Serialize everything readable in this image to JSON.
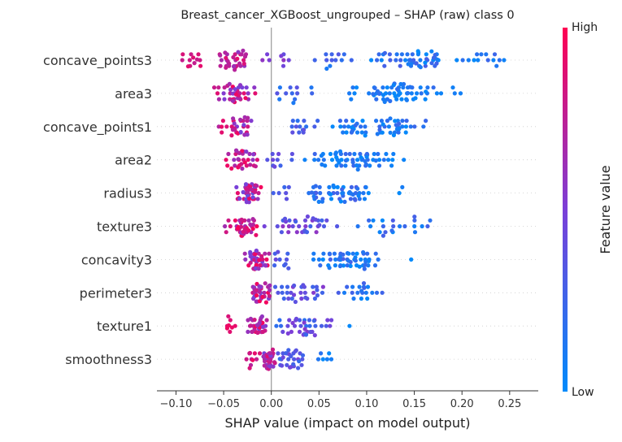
{
  "chart_data": {
    "type": "scatter",
    "subtype": "shap-beeswarm",
    "title": "Breast_cancer_XGBoost_ungrouped – SHAP (raw) class 0",
    "xlabel": "SHAP value (impact on model output)",
    "xlim": [
      -0.12,
      0.28
    ],
    "xticks": [
      -0.1,
      -0.05,
      0.0,
      0.05,
      0.1,
      0.15,
      0.2,
      0.25
    ],
    "xtick_labels": [
      "−0.10",
      "−0.05",
      "0.00",
      "0.05",
      "0.10",
      "0.15",
      "0.20",
      "0.25"
    ],
    "grid": false,
    "colorbar": {
      "label": "Feature value",
      "high_label": "High",
      "low_label": "Low",
      "high_color": "#ff0052",
      "mid_color": "#7b3fd8",
      "low_color": "#008bfb"
    },
    "features": [
      {
        "name": "concave_points3",
        "clusters": [
          {
            "x": [
              -0.1,
              -0.07
            ],
            "n": 12,
            "c": [
              0.92,
              0.75
            ]
          },
          {
            "x": [
              -0.06,
              -0.02
            ],
            "n": 34,
            "c": [
              0.9,
              0.55
            ]
          },
          {
            "x": [
              -0.015,
              0.03
            ],
            "n": 8,
            "c": [
              0.6,
              0.4
            ]
          },
          {
            "x": [
              0.03,
              0.1
            ],
            "n": 12,
            "c": [
              0.35,
              0.1
            ]
          },
          {
            "x": [
              0.1,
              0.19
            ],
            "n": 48,
            "c": [
              0.3,
              0.0
            ]
          },
          {
            "x": [
              0.19,
              0.265
            ],
            "n": 14,
            "c": [
              0.25,
              0.0
            ]
          }
        ]
      },
      {
        "name": "area3",
        "clusters": [
          {
            "x": [
              -0.065,
              -0.015
            ],
            "n": 38,
            "c": [
              0.95,
              0.45
            ]
          },
          {
            "x": [
              -0.01,
              0.06
            ],
            "n": 12,
            "c": [
              0.4,
              0.1
            ]
          },
          {
            "x": [
              0.075,
              0.19
            ],
            "n": 60,
            "c": [
              0.2,
              0.0
            ]
          },
          {
            "x": [
              0.19,
              0.2
            ],
            "n": 3,
            "c": [
              0.1,
              0.0
            ]
          }
        ]
      },
      {
        "name": "concave_points1",
        "clusters": [
          {
            "x": [
              -0.06,
              -0.015
            ],
            "n": 32,
            "c": [
              0.95,
              0.45
            ]
          },
          {
            "x": [
              0.01,
              0.05
            ],
            "n": 14,
            "c": [
              0.4,
              0.15
            ]
          },
          {
            "x": [
              0.05,
              0.175
            ],
            "n": 56,
            "c": [
              0.25,
              0.0
            ]
          }
        ]
      },
      {
        "name": "area2",
        "clusters": [
          {
            "x": [
              -0.05,
              -0.01
            ],
            "n": 32,
            "c": [
              0.95,
              0.5
            ]
          },
          {
            "x": [
              -0.01,
              0.025
            ],
            "n": 10,
            "c": [
              0.45,
              0.2
            ]
          },
          {
            "x": [
              0.025,
              0.145
            ],
            "n": 60,
            "c": [
              0.25,
              0.0
            ]
          }
        ]
      },
      {
        "name": "radius3",
        "clusters": [
          {
            "x": [
              -0.04,
              -0.005
            ],
            "n": 44,
            "c": [
              0.98,
              0.4
            ]
          },
          {
            "x": [
              0.0,
              0.03
            ],
            "n": 6,
            "c": [
              0.4,
              0.2
            ]
          },
          {
            "x": [
              0.03,
              0.11
            ],
            "n": 52,
            "c": [
              0.3,
              0.0
            ]
          },
          {
            "x": [
              0.13,
              0.142
            ],
            "n": 2,
            "c": [
              0.1,
              0.0
            ]
          }
        ]
      },
      {
        "name": "texture3",
        "clusters": [
          {
            "x": [
              -0.05,
              -0.01
            ],
            "n": 40,
            "c": [
              0.98,
              0.6
            ]
          },
          {
            "x": [
              -0.01,
              0.08
            ],
            "n": 34,
            "c": [
              0.6,
              0.25
            ]
          },
          {
            "x": [
              0.08,
              0.175
            ],
            "n": 22,
            "c": [
              0.3,
              0.0
            ]
          }
        ]
      },
      {
        "name": "concavity3",
        "clusters": [
          {
            "x": [
              -0.03,
              0.0
            ],
            "n": 40,
            "c": [
              0.98,
              0.45
            ]
          },
          {
            "x": [
              0.0,
              0.03
            ],
            "n": 10,
            "c": [
              0.5,
              0.25
            ]
          },
          {
            "x": [
              0.035,
              0.12
            ],
            "n": 54,
            "c": [
              0.3,
              0.0
            ]
          },
          {
            "x": [
              0.145,
              0.148
            ],
            "n": 1,
            "c": [
              0.1,
              0.0
            ]
          }
        ]
      },
      {
        "name": "perimeter3",
        "clusters": [
          {
            "x": [
              -0.025,
              0.0
            ],
            "n": 36,
            "c": [
              0.98,
              0.45
            ]
          },
          {
            "x": [
              0.0,
              0.06
            ],
            "n": 30,
            "c": [
              0.55,
              0.25
            ]
          },
          {
            "x": [
              0.06,
              0.12
            ],
            "n": 20,
            "c": [
              0.3,
              0.0
            ]
          }
        ]
      },
      {
        "name": "texture1",
        "clusters": [
          {
            "x": [
              -0.055,
              -0.03
            ],
            "n": 8,
            "c": [
              0.95,
              0.8
            ]
          },
          {
            "x": [
              -0.03,
              0.0
            ],
            "n": 36,
            "c": [
              0.98,
              0.5
            ]
          },
          {
            "x": [
              0.0,
              0.075
            ],
            "n": 36,
            "c": [
              0.55,
              0.15
            ]
          },
          {
            "x": [
              0.08,
              0.085
            ],
            "n": 1,
            "c": [
              0.1,
              0.0
            ]
          }
        ]
      },
      {
        "name": "smoothness3",
        "clusters": [
          {
            "x": [
              -0.035,
              -0.01
            ],
            "n": 10,
            "c": [
              0.95,
              0.7
            ]
          },
          {
            "x": [
              -0.01,
              0.005
            ],
            "n": 36,
            "c": [
              0.9,
              0.45
            ]
          },
          {
            "x": [
              0.005,
              0.035
            ],
            "n": 30,
            "c": [
              0.5,
              0.2
            ]
          },
          {
            "x": [
              0.045,
              0.07
            ],
            "n": 6,
            "c": [
              0.2,
              0.0
            ]
          }
        ]
      }
    ]
  }
}
